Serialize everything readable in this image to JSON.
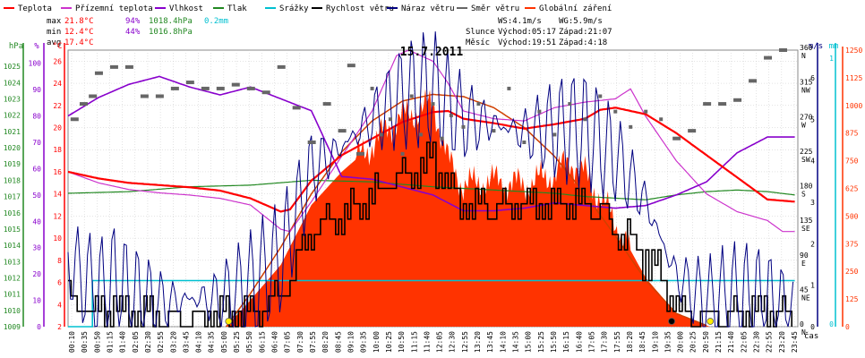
{
  "legend": [
    {
      "label": "Teplota",
      "color": "#ff0000"
    },
    {
      "label": "Přízemní teplota",
      "color": "#cc33cc"
    },
    {
      "label": "Vlhkost",
      "color": "#8800cc"
    },
    {
      "label": "Tlak",
      "color": "#228822"
    },
    {
      "label": "Srážky",
      "color": "#00c0d0"
    },
    {
      "label": "Rychlost větru",
      "color": "#000000"
    },
    {
      "label": "Náraz větru",
      "color": "#000080"
    },
    {
      "label": "Směr větru",
      "color": "#666666"
    },
    {
      "label": "Globální záření",
      "color": "#ff3300"
    }
  ],
  "stats": {
    "max": {
      "label": "max",
      "temp": "21.8°C",
      "hum": "94%",
      "press": "1018.4hPa",
      "rain": "0.2mm"
    },
    "min": {
      "label": "min",
      "temp": "12.4°C",
      "hum": "44%",
      "press": "1016.8hPa"
    },
    "avg": {
      "label": "avg",
      "temp": "17.4°C"
    }
  },
  "info": {
    "ws": "WS:4.1m/s",
    "wg": "WG:5.9m/s",
    "sun_label": "Slunce",
    "sun_rise": "Východ:05:17",
    "sun_set": "Západ:21:07",
    "moon_label": "Měsíc",
    "moon_rise": "Východ:19:51",
    "moon_set": "Západ:4:18"
  },
  "title": "15.7.2011",
  "colors": {
    "temp": "#ff0000",
    "ground": "#cc33cc",
    "hum": "#8800cc",
    "press": "#228822",
    "rain": "#00c0d0",
    "wind": "#000000",
    "gust": "#000080",
    "dir": "#666666",
    "rad": "#ff3300",
    "grid": "#c8c8c8"
  },
  "chart_data": {
    "type": "line",
    "x_unit": "čas",
    "x_range": [
      "00:10",
      "23:55"
    ],
    "x_tick_labels": [
      "00:10",
      "00:35",
      "00:50",
      "01:15",
      "01:40",
      "02:05",
      "02:30",
      "02:55",
      "03:20",
      "03:45",
      "04:10",
      "04:35",
      "05:00",
      "05:25",
      "05:50",
      "06:15",
      "06:40",
      "07:05",
      "07:30",
      "07:55",
      "08:20",
      "08:45",
      "09:10",
      "09:35",
      "10:00",
      "10:25",
      "10:50",
      "11:15",
      "11:40",
      "12:05",
      "12:30",
      "12:55",
      "13:20",
      "13:45",
      "14:10",
      "14:35",
      "15:00",
      "15:25",
      "15:50",
      "16:15",
      "16:40",
      "17:05",
      "17:30",
      "17:55",
      "18:20",
      "18:45",
      "19:10",
      "19:35",
      "20:00",
      "20:25",
      "20:50",
      "21:15",
      "21:40",
      "22:05",
      "22:30",
      "22:55",
      "23:20",
      "23:45"
    ],
    "axes": {
      "pressure_hpa": {
        "label": "hPa",
        "range": [
          1009,
          1026
        ],
        "ticks": [
          1009,
          1010,
          1011,
          1012,
          1013,
          1014,
          1015,
          1016,
          1017,
          1018,
          1019,
          1020,
          1021,
          1022,
          1023,
          1024,
          1025
        ]
      },
      "humidity_pct": {
        "label": "%",
        "range": [
          0,
          105
        ],
        "ticks": [
          0,
          10,
          20,
          30,
          40,
          50,
          60,
          70,
          80,
          90,
          100
        ]
      },
      "temperature_c": {
        "label": "°C",
        "range": [
          2,
          27
        ],
        "ticks": [
          2,
          4,
          6,
          8,
          10,
          12,
          14,
          16,
          18,
          20,
          22,
          24,
          26
        ]
      },
      "wind_ms": {
        "label": "m/s",
        "range": [
          0,
          6
        ],
        "ticks": [
          0,
          1,
          2,
          3,
          4,
          5,
          6
        ]
      },
      "rain_mm": {
        "label": "mm",
        "range": [
          0,
          1
        ],
        "ticks": [
          0,
          1
        ]
      },
      "direction": {
        "range": [
          0,
          360
        ],
        "ticks": [
          0,
          45,
          90,
          135,
          180,
          225,
          270,
          315,
          360
        ],
        "tick_labels": [
          "N",
          "NE",
          "E",
          "SE",
          "S",
          "SW",
          "W",
          "NW",
          "N"
        ]
      },
      "radiation": {
        "range": [
          0,
          1250
        ],
        "ticks": [
          0,
          125,
          250,
          375,
          500,
          625,
          750,
          875,
          1000,
          1125,
          1250
        ]
      }
    },
    "series": [
      {
        "name": "Teplota",
        "axis": "temperature_c",
        "x": [
          0,
          1,
          2,
          3,
          4,
          5,
          6,
          7,
          7.3,
          8,
          9,
          10,
          11,
          12,
          12.5,
          13,
          14,
          15,
          16,
          17,
          17.5,
          18,
          19,
          20,
          21,
          22,
          23,
          23.9
        ],
        "y": [
          16,
          15.4,
          15,
          14.8,
          14.6,
          14.3,
          13.6,
          12.4,
          12.6,
          15.2,
          17.5,
          19,
          20.5,
          21.4,
          21.5,
          20.8,
          20.4,
          19.9,
          20.3,
          20.8,
          21.6,
          21.8,
          21.2,
          19.5,
          17.5,
          15.5,
          13.5,
          13.3
        ]
      },
      {
        "name": "Přízemní teplota",
        "axis": "temperature_c",
        "x": [
          0,
          1,
          2,
          3,
          4,
          5,
          6,
          7,
          7.3,
          8,
          9,
          10,
          10.8,
          11.2,
          12,
          12.5,
          13,
          14,
          15,
          16,
          17,
          18,
          18.5,
          19,
          20,
          21,
          22,
          23,
          23.5,
          23.9
        ],
        "y": [
          16,
          15,
          14.4,
          14.1,
          13.9,
          13.6,
          13,
          10.8,
          10.6,
          13.3,
          17.4,
          21.5,
          26.5,
          27,
          26,
          24,
          21.5,
          20.8,
          20.6,
          21.8,
          22.3,
          22.6,
          23.5,
          21,
          17,
          14,
          12.4,
          11.6,
          10.6,
          10.6
        ]
      },
      {
        "name": "Vlhkost",
        "axis": "humidity_pct",
        "x": [
          0,
          1,
          2,
          3,
          4,
          5,
          6,
          8,
          9,
          10,
          12,
          13,
          14,
          15,
          16,
          17,
          18,
          19,
          20,
          21,
          22,
          23,
          23.9
        ],
        "y": [
          80,
          87,
          92,
          95,
          91,
          88,
          91,
          82,
          57,
          56,
          50,
          44,
          44,
          45,
          47,
          46,
          45,
          46,
          50,
          55,
          66,
          72,
          72
        ]
      },
      {
        "name": "Tlak",
        "axis": "pressure_hpa",
        "x": [
          0,
          2,
          4,
          6,
          8,
          10,
          12,
          14,
          16,
          17,
          18,
          19,
          20,
          21,
          22,
          23,
          23.9
        ],
        "y": [
          1017.2,
          1017.3,
          1017.6,
          1017.7,
          1018.0,
          1017.9,
          1017.6,
          1017.4,
          1017.2,
          1017.0,
          1016.9,
          1016.8,
          1017.1,
          1017.3,
          1017.4,
          1017.3,
          1017.1
        ]
      },
      {
        "name": "Srážky",
        "axis": "rain_mm",
        "x": [
          0,
          0.8,
          0.8,
          23.9
        ],
        "y": [
          0,
          0,
          0.2,
          0.2
        ]
      },
      {
        "name": "Rychlost větru",
        "axis": "wind_ms",
        "x": [
          0,
          1,
          1.5,
          2,
          3,
          4,
          5,
          6,
          7,
          8,
          9,
          10,
          11,
          12,
          13,
          14,
          15,
          16,
          17,
          18,
          19,
          20,
          21,
          22,
          23,
          23.9
        ],
        "y": [
          0.6,
          0.3,
          0.5,
          0.2,
          0.2,
          0.2,
          0.2,
          0.3,
          0.6,
          2.1,
          2.4,
          2.8,
          3.3,
          3.6,
          2.6,
          2.6,
          2.7,
          2.7,
          2.7,
          2.2,
          1.5,
          0.5,
          0.2,
          0.3,
          0.3,
          0.2
        ]
      },
      {
        "name": "Náraz větru",
        "axis": "wind_ms",
        "x": [
          0,
          1,
          1.5,
          2,
          3,
          4,
          5,
          6,
          7,
          8,
          9,
          10,
          11,
          12,
          13,
          14,
          15,
          16,
          17,
          18,
          19,
          20,
          21,
          22,
          23,
          23.9
        ],
        "y": [
          1.4,
          0.7,
          1.0,
          0.7,
          0.5,
          0.6,
          0.6,
          0.9,
          1.5,
          3.4,
          3.9,
          4.5,
          5.0,
          5.2,
          4.5,
          4.4,
          4.2,
          4.3,
          4.3,
          3.7,
          2.7,
          1.1,
          0.5,
          0.6,
          0.6,
          0.4
        ]
      },
      {
        "name": "Globální záření",
        "axis": "radiation",
        "x": [
          5.2,
          6,
          7,
          8,
          9,
          10,
          10.5,
          11,
          11.5,
          12,
          12.5,
          13,
          14,
          15,
          16,
          16.5,
          17,
          18,
          19,
          20,
          21.1
        ],
        "y": [
          0,
          120,
          280,
          550,
          700,
          820,
          900,
          950,
          970,
          1010,
          750,
          640,
          660,
          640,
          690,
          750,
          690,
          470,
          220,
          60,
          0
        ]
      },
      {
        "name": "Globální záření (max)",
        "axis": "radiation",
        "x": [
          5.2,
          6,
          7,
          8,
          9,
          10,
          11,
          12,
          13,
          14,
          15,
          16,
          17,
          18,
          19,
          20,
          21.1
        ],
        "y": [
          0,
          150,
          360,
          600,
          790,
          930,
          1020,
          1050,
          1040,
          990,
          900,
          770,
          600,
          410,
          210,
          60,
          0
        ]
      }
    ],
    "direction_points": [
      {
        "t": 0.2,
        "deg": 270
      },
      {
        "t": 0.5,
        "deg": 290
      },
      {
        "t": 0.8,
        "deg": 300
      },
      {
        "t": 1.0,
        "deg": 330
      },
      {
        "t": 1.5,
        "deg": 338
      },
      {
        "t": 2.0,
        "deg": 338
      },
      {
        "t": 2.5,
        "deg": 300
      },
      {
        "t": 3.0,
        "deg": 300
      },
      {
        "t": 3.5,
        "deg": 310
      },
      {
        "t": 4.0,
        "deg": 318
      },
      {
        "t": 4.5,
        "deg": 310
      },
      {
        "t": 5.0,
        "deg": 310
      },
      {
        "t": 5.5,
        "deg": 315
      },
      {
        "t": 6.0,
        "deg": 310
      },
      {
        "t": 6.5,
        "deg": 305
      },
      {
        "t": 7.0,
        "deg": 338
      },
      {
        "t": 7.5,
        "deg": 285
      },
      {
        "t": 8.0,
        "deg": 240
      },
      {
        "t": 8.5,
        "deg": 290
      },
      {
        "t": 9.0,
        "deg": 255
      },
      {
        "t": 9.3,
        "deg": 340
      },
      {
        "t": 9.6,
        "deg": 225
      },
      {
        "t": 10.0,
        "deg": 310
      },
      {
        "t": 10.3,
        "deg": 250
      },
      {
        "t": 10.6,
        "deg": 270
      },
      {
        "t": 11.0,
        "deg": 225
      },
      {
        "t": 11.3,
        "deg": 300
      },
      {
        "t": 11.6,
        "deg": 250
      },
      {
        "t": 12.0,
        "deg": 290
      },
      {
        "t": 12.3,
        "deg": 245
      },
      {
        "t": 12.6,
        "deg": 275
      },
      {
        "t": 13.0,
        "deg": 260
      },
      {
        "t": 13.5,
        "deg": 290
      },
      {
        "t": 14.0,
        "deg": 255
      },
      {
        "t": 14.5,
        "deg": 310
      },
      {
        "t": 15.0,
        "deg": 240
      },
      {
        "t": 15.5,
        "deg": 280
      },
      {
        "t": 16.0,
        "deg": 250
      },
      {
        "t": 16.5,
        "deg": 290
      },
      {
        "t": 17.0,
        "deg": 270
      },
      {
        "t": 17.5,
        "deg": 300
      },
      {
        "t": 18.0,
        "deg": 280
      },
      {
        "t": 18.5,
        "deg": 260
      },
      {
        "t": 19.0,
        "deg": 280
      },
      {
        "t": 19.5,
        "deg": 270
      },
      {
        "t": 20.0,
        "deg": 245
      },
      {
        "t": 20.5,
        "deg": 255
      },
      {
        "t": 21.0,
        "deg": 290
      },
      {
        "t": 21.5,
        "deg": 290
      },
      {
        "t": 22.0,
        "deg": 295
      },
      {
        "t": 22.5,
        "deg": 320
      },
      {
        "t": 23.0,
        "deg": 350
      },
      {
        "t": 23.5,
        "deg": 360
      }
    ],
    "markers": [
      {
        "name": "sunrise",
        "t": 5.28,
        "color": "#ffee00"
      },
      {
        "name": "sunset",
        "t": 21.12,
        "color": "#ffee00"
      },
      {
        "name": "moonrise",
        "t": 19.85,
        "color": "#000000"
      }
    ],
    "grid": true,
    "legend_position": "top"
  }
}
